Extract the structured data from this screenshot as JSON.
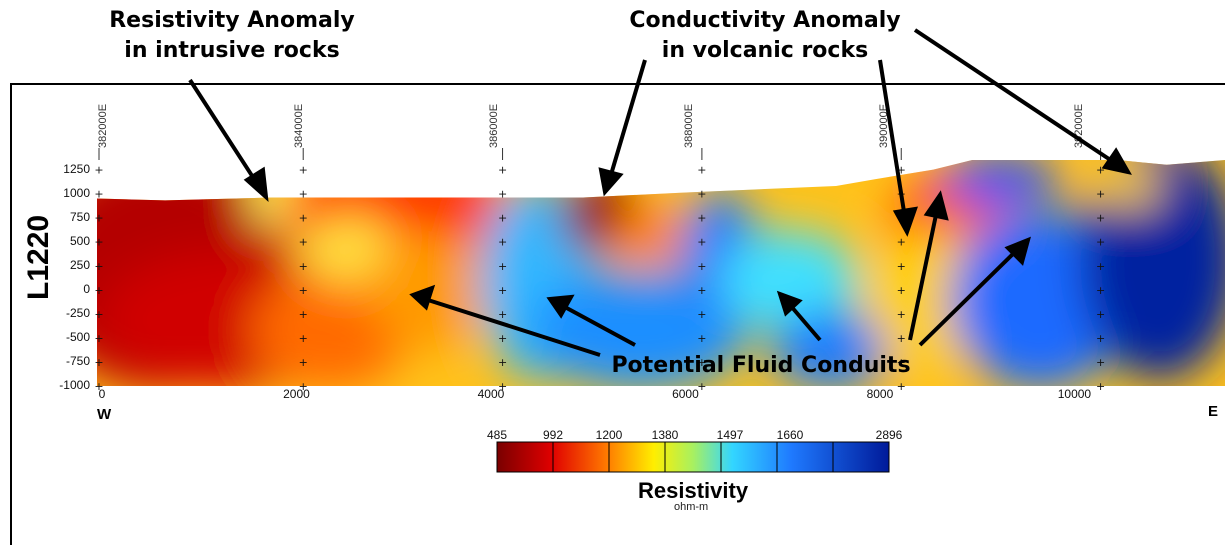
{
  "annotations": {
    "resistivity": "Resistivity Anomaly\nin intrusive rocks",
    "conductivity": "Conductivity Anomaly\nin volcanic rocks",
    "fluid": "Potential Fluid Conduits"
  },
  "section_label": "L1220",
  "west_label": "W",
  "east_label": "E",
  "chart_data": {
    "type": "heatmap",
    "title": "",
    "xlabel": "",
    "ylabel": "L1220",
    "x_ticks": [
      "0",
      "2000",
      "4000",
      "6000",
      "8000",
      "10000"
    ],
    "xlim": [
      0,
      11600
    ],
    "y_ticks": [
      "1250",
      "1000",
      "750",
      "500",
      "250",
      "0",
      "-250",
      "-500",
      "-750",
      "-1000"
    ],
    "ylim": [
      -1000,
      1350
    ],
    "easting_ticks": [
      "382000E",
      "384000E",
      "386000E",
      "388000E",
      "390000E",
      "392000E"
    ],
    "colorbar": {
      "title": "Resistivity",
      "unit": "ohm-m",
      "ticks": [
        "485",
        "992",
        "1200",
        "1380",
        "1497",
        "1660",
        "2896"
      ]
    },
    "colors": {
      "low": "#7a0000",
      "mid_low": "#ff6a00",
      "mid": "#ffff33",
      "mid_high": "#33d6ff",
      "high": "#001a99"
    }
  }
}
